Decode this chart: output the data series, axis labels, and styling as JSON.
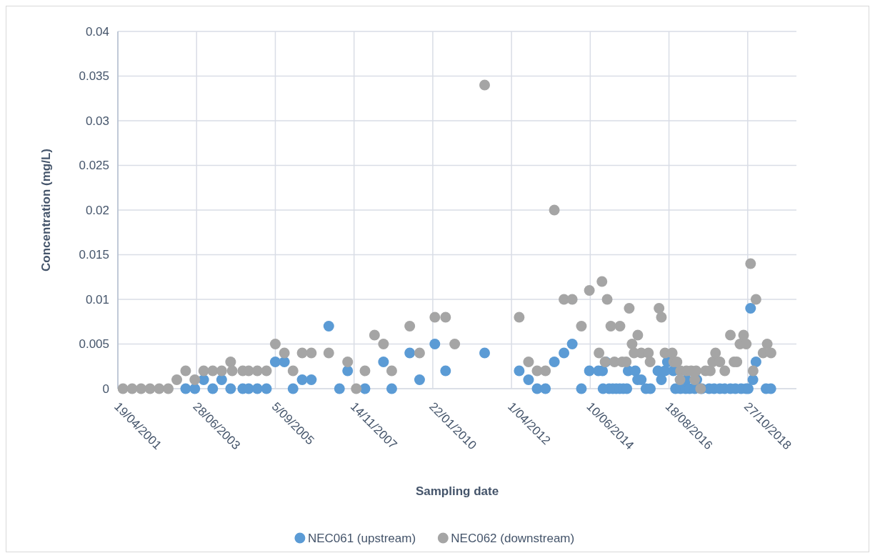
{
  "chart_data": {
    "type": "scatter",
    "xlabel": "Sampling date",
    "ylabel": "Concentration (mg/L)",
    "xlim": [
      "2001-04-19",
      "2020-03-05"
    ],
    "xticks": [
      {
        "value": "2001-04-19",
        "label": "19/04/2001"
      },
      {
        "value": "2003-06-28",
        "label": "28/06/2003"
      },
      {
        "value": "2005-09-05",
        "label": "5/09/2005"
      },
      {
        "value": "2007-11-14",
        "label": "14/11/2007"
      },
      {
        "value": "2010-01-22",
        "label": "22/01/2010"
      },
      {
        "value": "2012-04-01",
        "label": "1/04/2012"
      },
      {
        "value": "2014-06-10",
        "label": "10/06/2014"
      },
      {
        "value": "2016-08-18",
        "label": "18/08/2016"
      },
      {
        "value": "2018-10-27",
        "label": "27/10/2018"
      }
    ],
    "ylim": [
      0,
      0.04
    ],
    "yticks": [
      0,
      0.005,
      0.01,
      0.015,
      0.02,
      0.025,
      0.03,
      0.035,
      0.04
    ],
    "grid": true,
    "legend": "bottom",
    "marker": "circle",
    "series": [
      {
        "name": "NEC061 (upstream)",
        "color": "#5b9bd5",
        "x": [
          "2003-03-09",
          "2003-06-10",
          "2003-09-08",
          "2003-12-09",
          "2004-03-09",
          "2004-06-08",
          "2004-10-09",
          "2004-12-08",
          "2005-03-06",
          "2005-06-07",
          "2005-09-05",
          "2005-12-06",
          "2006-03-04",
          "2006-06-05",
          "2006-09-06",
          "2007-03-02",
          "2007-06-19",
          "2007-09-10",
          "2008-03-04",
          "2008-09-08",
          "2008-12-01",
          "2009-06-02",
          "2009-09-10",
          "2010-02-12",
          "2010-06-01",
          "2011-07-03",
          "2012-06-18",
          "2012-09-21",
          "2012-12-17",
          "2013-03-12",
          "2013-06-10",
          "2013-09-16",
          "2013-12-09",
          "2014-03-12",
          "2014-06-01",
          "2014-09-01",
          "2014-10-13",
          "2014-11-14",
          "2014-10-18",
          "2014-12-19",
          "2015-01-25",
          "2015-03-01",
          "2015-04-06",
          "2015-05-12",
          "2015-06-17",
          "2015-06-30",
          "2015-09-11",
          "2015-10-04",
          "2015-11-10",
          "2015-12-28",
          "2016-02-11",
          "2016-04-27",
          "2016-06-02",
          "2016-07-08",
          "2016-08-02",
          "2016-10-02",
          "2016-10-23",
          "2016-12-13",
          "2017-02-03",
          "2017-02-10",
          "2017-03-16",
          "2017-05-07",
          "2017-05-28",
          "2017-07-18",
          "2017-09-30",
          "2017-11-20",
          "2018-01-17",
          "2018-03-07",
          "2018-05-04",
          "2018-06-24",
          "2018-08-21",
          "2018-10-11",
          "2018-11-01",
          "2018-11-25",
          "2018-12-19",
          "2019-01-19",
          "2019-05-01",
          "2019-06-19"
        ],
        "values": [
          0,
          0,
          0.001,
          0,
          0.001,
          0,
          0,
          0,
          0,
          0,
          0.003,
          0.003,
          0,
          0.001,
          0.001,
          0.007,
          0,
          0.002,
          0,
          0.003,
          0,
          0.004,
          0.001,
          0.005,
          0.002,
          0.004,
          0.002,
          0.001,
          0,
          0,
          0.003,
          0.004,
          0.005,
          0,
          0.002,
          0.002,
          0.002,
          0.003,
          0,
          0,
          0,
          0,
          0,
          0,
          0,
          0.002,
          0.002,
          0.001,
          0.001,
          0,
          0,
          0.002,
          0.001,
          0.002,
          0.003,
          0.002,
          0,
          0,
          0,
          0.001,
          0,
          0,
          0.001,
          0,
          0,
          0,
          0,
          0,
          0,
          0,
          0,
          0,
          0,
          0.009,
          0.001,
          0.003,
          0,
          0
        ]
      },
      {
        "name": "NEC062 (downstream)",
        "color": "#a5a5a5",
        "x": [
          "2001-06-10",
          "2001-09-11",
          "2001-12-11",
          "2002-03-12",
          "2002-06-13",
          "2002-09-13",
          "2002-12-09",
          "2003-03-09",
          "2003-06-10",
          "2003-09-08",
          "2003-12-09",
          "2004-03-09",
          "2004-06-08",
          "2004-06-24",
          "2004-10-09",
          "2004-12-08",
          "2005-03-06",
          "2005-06-07",
          "2005-09-05",
          "2005-12-06",
          "2006-03-04",
          "2006-06-05",
          "2006-09-06",
          "2007-03-02",
          "2007-09-10",
          "2007-12-06",
          "2008-03-04",
          "2008-06-09",
          "2008-09-08",
          "2008-12-01",
          "2009-06-02",
          "2009-09-10",
          "2010-02-12",
          "2010-06-01",
          "2010-09-02",
          "2011-07-03",
          "2012-06-18",
          "2012-09-21",
          "2012-12-17",
          "2013-03-12",
          "2013-06-10",
          "2013-09-16",
          "2013-12-09",
          "2014-03-12",
          "2014-06-01",
          "2014-09-07",
          "2014-10-07",
          "2014-11-08",
          "2014-11-29",
          "2015-01-05",
          "2015-02-11",
          "2015-04-08",
          "2015-04-30",
          "2015-06-10",
          "2015-07-11",
          "2015-08-09",
          "2015-08-29",
          "2015-10-06",
          "2015-11-10",
          "2016-01-22",
          "2016-02-08",
          "2016-05-09",
          "2016-06-02",
          "2016-07-08",
          "2016-09-20",
          "2016-10-06",
          "2016-11-07",
          "2016-12-08",
          "2016-12-13",
          "2017-02-11",
          "2017-04-01",
          "2017-05-07",
          "2017-05-21",
          "2017-07-05",
          "2017-08-24",
          "2017-10-12",
          "2017-11-05",
          "2017-12-04",
          "2018-01-17",
          "2018-03-08",
          "2018-05-04",
          "2018-06-10",
          "2018-07-09",
          "2018-08-09",
          "2018-09-15",
          "2018-10-12",
          "2018-11-25",
          "2018-12-21",
          "2019-01-19",
          "2019-04-01",
          "2019-05-13",
          "2019-06-21"
        ],
        "values": [
          0,
          0,
          0,
          0,
          0,
          0,
          0.001,
          0.002,
          0.001,
          0.002,
          0.002,
          0.002,
          0.003,
          0.002,
          0.002,
          0.002,
          0.002,
          0.002,
          0.005,
          0.004,
          0.002,
          0.004,
          0.004,
          0.004,
          0.003,
          0,
          0.002,
          0.006,
          0.005,
          0.002,
          0.007,
          0.004,
          0.008,
          0.008,
          0.005,
          0.034,
          0.008,
          0.003,
          0.002,
          0.002,
          0.02,
          0.01,
          0.01,
          0.007,
          0.011,
          0.004,
          0.012,
          0.003,
          0.01,
          0.007,
          0.003,
          0.007,
          0.003,
          0.003,
          0.009,
          0.005,
          0.004,
          0.006,
          0.004,
          0.004,
          0.003,
          0.009,
          0.008,
          0.004,
          0.004,
          0.003,
          0.003,
          0.001,
          0.002,
          0.002,
          0.002,
          0.001,
          0.002,
          0,
          0.002,
          0.002,
          0.003,
          0.004,
          0.003,
          0.002,
          0.006,
          0.003,
          0.003,
          0.005,
          0.006,
          0.005,
          0.014,
          0.002,
          0.01,
          0.004,
          0.005,
          0.004
        ]
      }
    ]
  }
}
